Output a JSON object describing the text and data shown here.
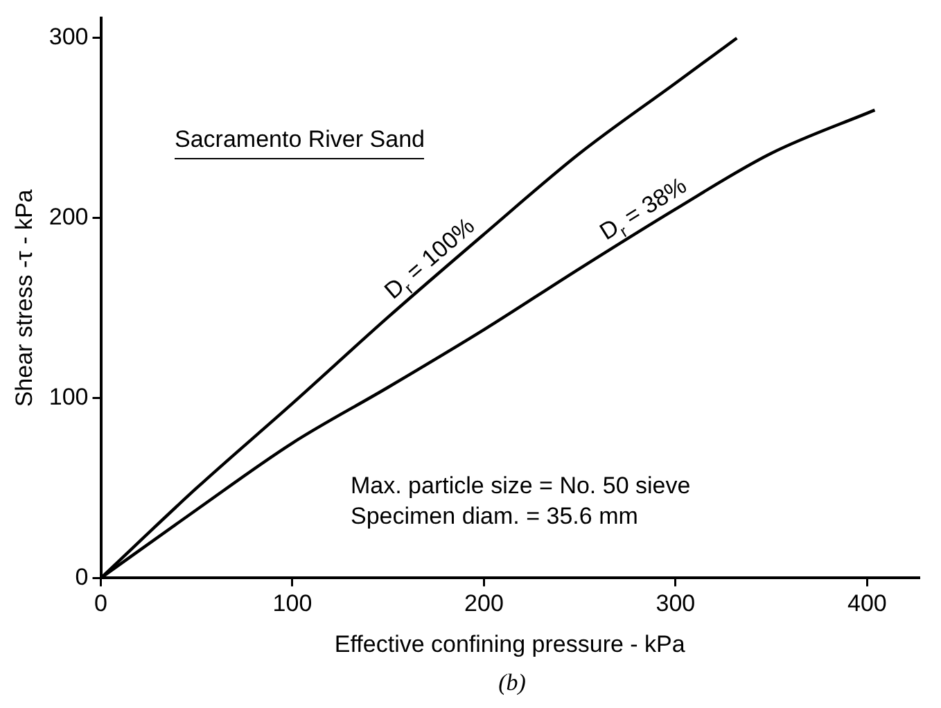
{
  "chart_data": {
    "type": "line",
    "xlabel": "Effective confining pressure - kPa",
    "ylabel": "Shear stress -τ - kPa",
    "xlim": [
      0,
      427
    ],
    "xticks": [
      0,
      100,
      200,
      300,
      400
    ],
    "ylim": [
      0,
      311
    ],
    "yticks": [
      0,
      100,
      200,
      300
    ],
    "grid": false,
    "legend": false,
    "marker": "none",
    "line_style": "solid",
    "series": [
      {
        "name": "D$_{r}$ = 100%",
        "color": "#000000",
        "x": [
          0,
          50,
          100,
          150,
          200,
          250,
          300,
          332
        ],
        "values": [
          0,
          50,
          97,
          145,
          191,
          236,
          275,
          300
        ]
      },
      {
        "name": "D$_{r}$ = 38%",
        "color": "#000000",
        "x": [
          0,
          50,
          100,
          150,
          200,
          250,
          300,
          350,
          404
        ],
        "values": [
          0,
          38,
          75,
          106,
          138,
          172,
          205,
          236,
          260
        ]
      }
    ],
    "annotations": [
      "Sacramento River Sand",
      "Max. particle size = No. 50 sieve\nSpecimen diam. = 35.6 mm",
      "(b)"
    ]
  }
}
